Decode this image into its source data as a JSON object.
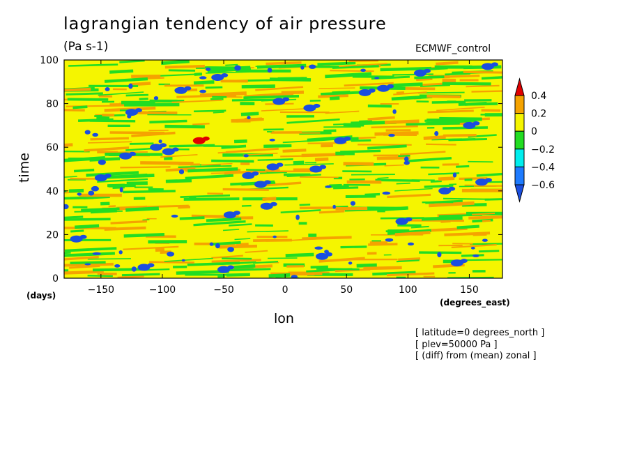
{
  "chart_data": {
    "type": "heatmap",
    "title": "lagrangian tendency of air pressure",
    "units": "(Pa s-1)",
    "model": "ECMWF_control",
    "xlabel": "lon",
    "ylabel": "time",
    "x_unit": "(degrees_east)",
    "y_unit": "(days)",
    "xlim": [
      -180,
      177
    ],
    "ylim": [
      0,
      100
    ],
    "x_ticks": [
      -150,
      -100,
      -50,
      0,
      50,
      100,
      150
    ],
    "y_ticks": [
      0,
      20,
      40,
      60,
      80,
      100
    ],
    "colorbar": {
      "levels": [
        0.4,
        0.2,
        0,
        -0.2,
        -0.4,
        -0.6
      ],
      "colors": [
        "#e00000",
        "#f5a300",
        "#f5f500",
        "#22dd22",
        "#00eeee",
        "#1e7bff",
        "#1a4ee0"
      ]
    },
    "blobs": [
      {
        "lon": -170,
        "t": 18,
        "level": -0.6
      },
      {
        "lon": -150,
        "t": 46,
        "level": -0.6
      },
      {
        "lon": -130,
        "t": 56,
        "level": -0.6
      },
      {
        "lon": -125,
        "t": 76,
        "level": -0.6
      },
      {
        "lon": -105,
        "t": 60,
        "level": -0.6
      },
      {
        "lon": -95,
        "t": 58,
        "level": -0.6
      },
      {
        "lon": -85,
        "t": 86,
        "level": -0.6
      },
      {
        "lon": -70,
        "t": 63,
        "level": 0.4
      },
      {
        "lon": -55,
        "t": 92,
        "level": -0.6
      },
      {
        "lon": -45,
        "t": 29,
        "level": -0.6
      },
      {
        "lon": -30,
        "t": 47,
        "level": -0.6
      },
      {
        "lon": -20,
        "t": 43,
        "level": -0.6
      },
      {
        "lon": -15,
        "t": 33,
        "level": -0.6
      },
      {
        "lon": -10,
        "t": 51,
        "level": -0.6
      },
      {
        "lon": -5,
        "t": 81,
        "level": -0.6
      },
      {
        "lon": 20,
        "t": 78,
        "level": -0.6
      },
      {
        "lon": 25,
        "t": 50,
        "level": -0.6
      },
      {
        "lon": 45,
        "t": 63,
        "level": -0.6
      },
      {
        "lon": 65,
        "t": 85,
        "level": -0.6
      },
      {
        "lon": 80,
        "t": 87,
        "level": -0.6
      },
      {
        "lon": 110,
        "t": 94,
        "level": -0.6
      },
      {
        "lon": 130,
        "t": 40,
        "level": -0.6
      },
      {
        "lon": 150,
        "t": 70,
        "level": -0.6
      },
      {
        "lon": 160,
        "t": 44,
        "level": -0.6
      },
      {
        "lon": 140,
        "t": 7,
        "level": -0.6
      },
      {
        "lon": 165,
        "t": 97,
        "level": -0.6
      },
      {
        "lon": -115,
        "t": 5,
        "level": -0.6
      },
      {
        "lon": -50,
        "t": 4,
        "level": -0.6
      },
      {
        "lon": 30,
        "t": 10,
        "level": -0.6
      },
      {
        "lon": 95,
        "t": 26,
        "level": -0.6
      }
    ]
  },
  "annotations": [
    "[ latitude=0 degrees_north ]",
    "[ plev=50000 Pa ]",
    "[ (diff) from (mean) zonal ]"
  ]
}
